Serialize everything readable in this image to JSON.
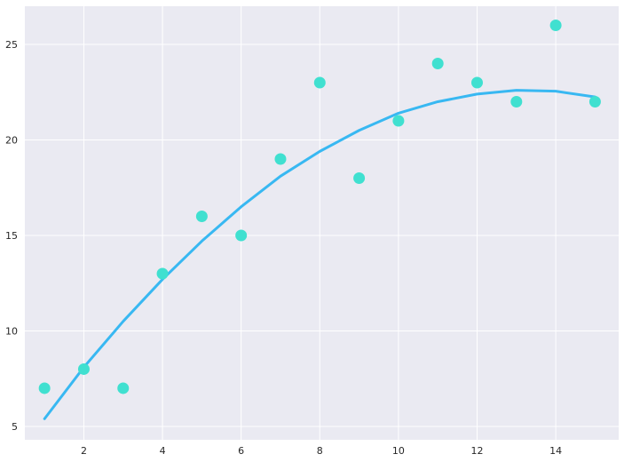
{
  "chart_data": {
    "type": "scatter",
    "title": "",
    "xlabel": "",
    "ylabel": "",
    "xlim": [
      0.5,
      15.6
    ],
    "ylim": [
      4.3,
      27.0
    ],
    "x_ticks": [
      2,
      4,
      6,
      8,
      10,
      12,
      14
    ],
    "y_ticks": [
      5,
      10,
      15,
      20,
      25
    ],
    "grid": true,
    "legend": "none",
    "colors": {
      "background": "#eaeaf2",
      "grid": "#ffffff",
      "points": "#40e0d0",
      "fit_line": "#38b8f2"
    },
    "series": [
      {
        "kind": "scatter",
        "x": [
          1,
          2,
          3,
          4,
          5,
          6,
          7,
          8,
          9,
          10,
          11,
          12,
          13,
          14,
          15
        ],
        "y": [
          7,
          8,
          7,
          13,
          16,
          15,
          19,
          23,
          18,
          21,
          24,
          23,
          22,
          26,
          22
        ]
      },
      {
        "kind": "line",
        "x": [
          1,
          2,
          3,
          4,
          5,
          6,
          7,
          8,
          9,
          10,
          11,
          12,
          13,
          14,
          15
        ],
        "y": [
          5.4,
          8.1,
          10.5,
          12.7,
          14.7,
          16.5,
          18.1,
          19.4,
          20.5,
          21.4,
          22.0,
          22.4,
          22.6,
          22.55,
          22.25
        ]
      }
    ]
  }
}
